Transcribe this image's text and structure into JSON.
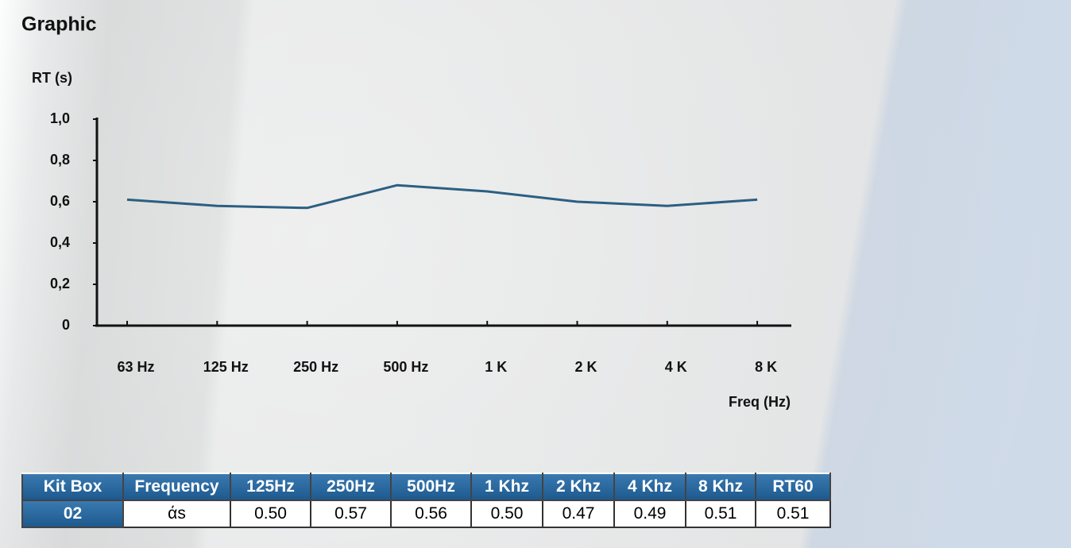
{
  "chart_data": {
    "type": "line",
    "title": "Graphic",
    "y_label": "RT (s)",
    "x_label": "Freq (Hz)",
    "categories": [
      "63 Hz",
      "125 Hz",
      "250 Hz",
      "500 Hz",
      "1 K",
      "2 K",
      "4 K",
      "8 K"
    ],
    "values": [
      0.61,
      0.58,
      0.57,
      0.68,
      0.65,
      0.6,
      0.58,
      0.61
    ],
    "color": "#2b5f82",
    "ylim": [
      0,
      1
    ],
    "yticks": [
      0,
      {
        "value": 0.2,
        "label": "0,2"
      },
      {
        "value": 0.4,
        "label": "0,4"
      },
      {
        "value": 0.6,
        "label": "0,6"
      },
      {
        "value": 0.8,
        "label": "0,8"
      },
      {
        "value": 1,
        "label": "1,0"
      }
    ]
  },
  "table": {
    "header": [
      "Kit Box",
      "Frequency",
      "125Hz",
      "250Hz",
      "500Hz",
      "1 Khz",
      "2 Khz",
      "4 Khz",
      "8 Khz",
      "RT60"
    ],
    "rows": [
      [
        "02",
        "άs",
        "0.50",
        "0.57",
        "0.56",
        "0.50",
        "0.47",
        "0.49",
        "0.51",
        "0.51"
      ]
    ]
  }
}
